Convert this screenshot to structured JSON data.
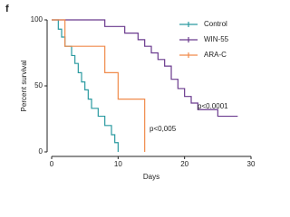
{
  "chart_data": {
    "type": "line",
    "step": true,
    "panel_label": "f",
    "xlabel": "Days",
    "ylabel": "Percent survival",
    "xlim": [
      0,
      30
    ],
    "xticks": [
      0,
      10,
      20,
      30
    ],
    "ylim": [
      0,
      100
    ],
    "yticks": [
      0,
      50,
      100
    ],
    "legend": "upper right",
    "series": [
      {
        "name": "Control",
        "color": "#2a9aa0",
        "x": [
          0,
          1,
          1.5,
          2,
          3,
          3.5,
          4,
          4.5,
          5,
          5.5,
          6,
          7,
          8,
          9,
          9.5,
          10
        ],
        "values": [
          100,
          93,
          87,
          80,
          73,
          67,
          60,
          53,
          47,
          40,
          33,
          27,
          20,
          13,
          7,
          0
        ]
      },
      {
        "name": "WIN-55",
        "color": "#6a3a8e",
        "x": [
          0,
          8,
          11,
          13,
          14,
          15,
          16,
          17,
          18,
          19,
          20,
          21,
          22,
          25,
          28
        ],
        "values": [
          100,
          95,
          90,
          85,
          80,
          75,
          70,
          65,
          55,
          48,
          42,
          37,
          32,
          27,
          27
        ]
      },
      {
        "name": "ARA-C",
        "color": "#f08a4b",
        "x": [
          0,
          2,
          8,
          10,
          14
        ],
        "values": [
          100,
          80,
          60,
          40,
          0
        ]
      }
    ],
    "annotations": [
      "p<0.0001",
      "p<0,005"
    ]
  }
}
